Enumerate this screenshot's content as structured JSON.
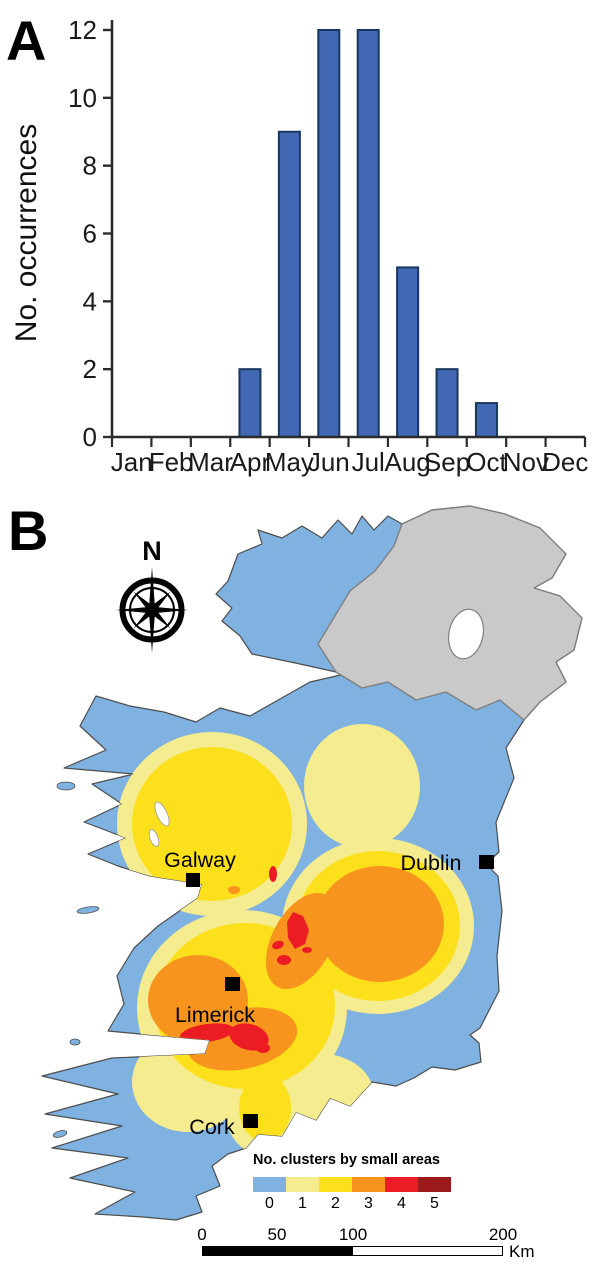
{
  "figure": {
    "panel_a_label": "A",
    "panel_b_label": "B"
  },
  "chart_data": {
    "type": "bar",
    "title": "",
    "categories": [
      "Jan",
      "Feb",
      "Mar",
      "Apr",
      "May",
      "Jun",
      "Jul",
      "Aug",
      "Sep",
      "Oct",
      "Nov",
      "Dec"
    ],
    "values": [
      0,
      0,
      0,
      2,
      9,
      12,
      12,
      5,
      2,
      1,
      0,
      0
    ],
    "xlabel": "",
    "ylabel": "No. occurrences",
    "ylim": [
      0,
      12
    ],
    "ytick_step": 2,
    "grid": "off",
    "legend": "none",
    "bar_color": "#4268B3",
    "bar_edge_color": "#17375E"
  },
  "map": {
    "north_label": "N",
    "cities": [
      {
        "label": "Galway"
      },
      {
        "label": "Dublin"
      },
      {
        "label": "Limerick"
      },
      {
        "label": "Cork"
      }
    ],
    "legend": {
      "title": "No. clusters by small areas",
      "entries": [
        {
          "value": "0",
          "color": "#7FB2E1"
        },
        {
          "value": "1",
          "color": "#F5EC8F"
        },
        {
          "value": "2",
          "color": "#FBE01B"
        },
        {
          "value": "3",
          "color": "#F7941E"
        },
        {
          "value": "4",
          "color": "#EC1C24"
        },
        {
          "value": "5",
          "color": "#9C1A1C"
        }
      ]
    },
    "scalebar": {
      "labels": [
        "0",
        "50",
        "100",
        "200"
      ],
      "unit": "Km"
    },
    "colors": {
      "sea": "#FFFFFF",
      "northern_ireland": "#C9C9C9",
      "coast_stroke": "#4D4D4D",
      "label_color": "#000000"
    }
  }
}
